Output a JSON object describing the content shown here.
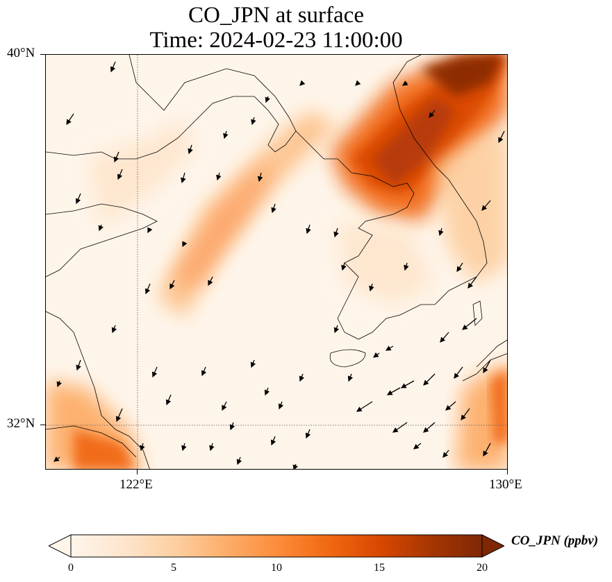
{
  "title": {
    "line1": "CO_JPN at surface",
    "line2": "Time: 2024-02-23 11:00:00"
  },
  "axes": {
    "lat_labels": [
      "40°N",
      "32°N"
    ],
    "lon_labels": [
      "122°E",
      "130°E"
    ],
    "lon_range": [
      120,
      130
    ],
    "lat_range": [
      31,
      40
    ],
    "gridlines": {
      "lon": 122,
      "lat": 32,
      "style": "dotted"
    }
  },
  "colorbar": {
    "label": "CO_JPN (ppbv)",
    "ticks": [
      "0",
      "5",
      "10",
      "15",
      "20"
    ],
    "range": [
      0,
      20
    ],
    "colormap": [
      "#fff5eb",
      "#fee6ce",
      "#fdd0a2",
      "#fdae6b",
      "#fd8d3c",
      "#f16913",
      "#d94801",
      "#a63603",
      "#7f2704"
    ],
    "extend": "both"
  },
  "chart_data": {
    "type": "heatmap",
    "variable": "CO_JPN",
    "units": "ppbv",
    "level": "surface",
    "features": [
      {
        "name": "high-band-north-korea",
        "peak_value": 20
      },
      {
        "name": "diagonal-plume-yellow-sea",
        "peak_value": 10
      },
      {
        "name": "shanghai-coast",
        "peak_value": 11
      },
      {
        "name": "kyushu-coast",
        "peak_value": 9
      }
    ],
    "wind_vectors": "shown"
  }
}
